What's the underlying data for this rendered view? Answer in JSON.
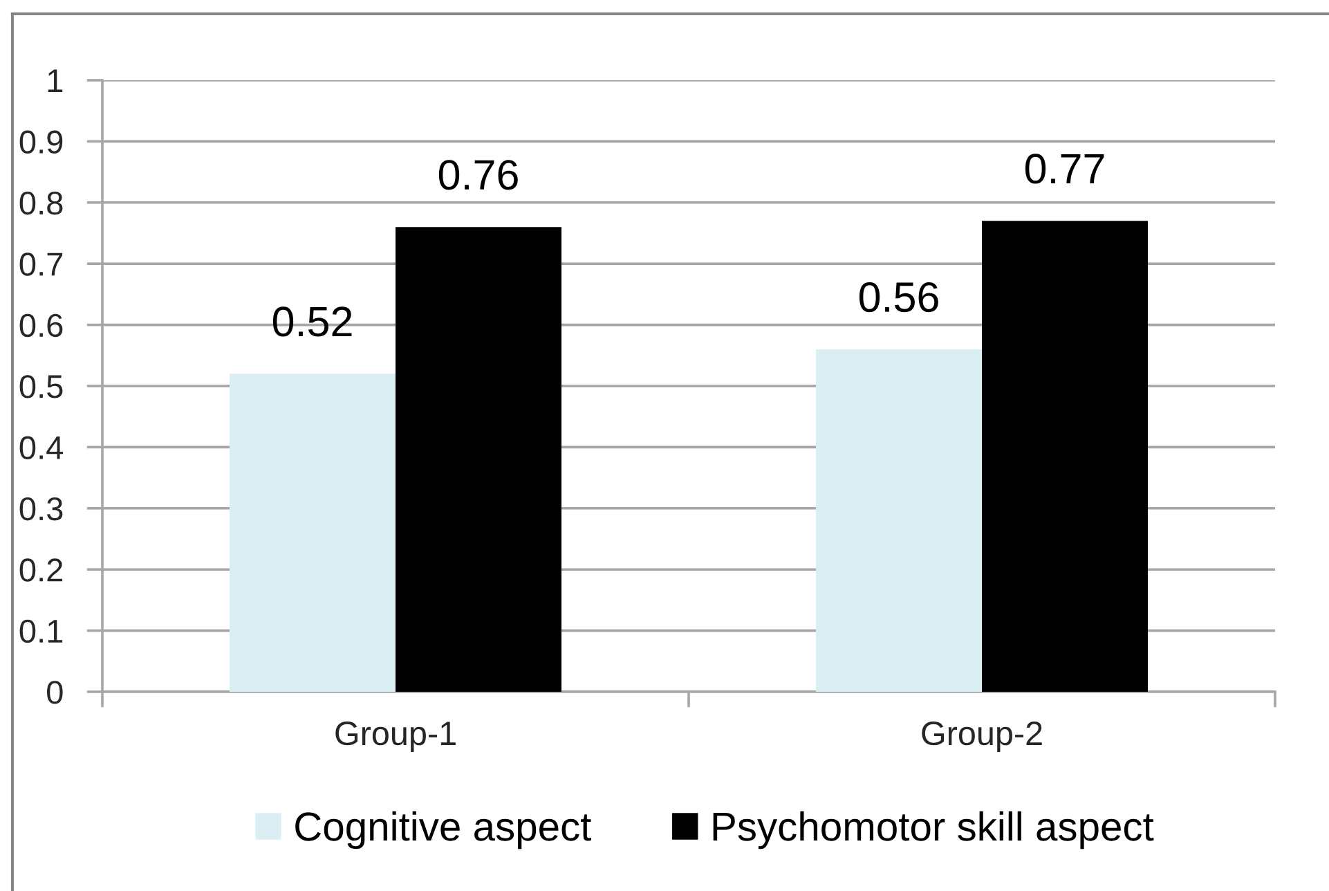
{
  "chart_data": {
    "type": "bar",
    "categories": [
      "Group-1",
      "Group-2"
    ],
    "series": [
      {
        "name": "Cognitive aspect",
        "color": "#daeef3",
        "values": [
          0.52,
          0.56
        ]
      },
      {
        "name": "Psychomotor skill aspect",
        "color": "#000000",
        "values": [
          0.76,
          0.77
        ]
      }
    ],
    "ylim": [
      0,
      1
    ],
    "yticks": [
      0,
      0.1,
      0.2,
      0.3,
      0.4,
      0.5,
      0.6,
      0.7,
      0.8,
      0.9,
      1
    ],
    "grid": "y",
    "legend": "bottom",
    "data_labels": true
  }
}
